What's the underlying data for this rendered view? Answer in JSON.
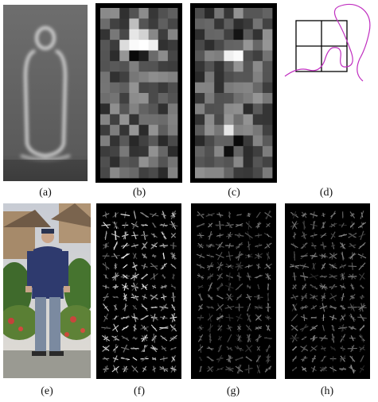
{
  "figure": {
    "captions": {
      "a": "(a)",
      "b": "(b)",
      "c": "(c)",
      "d": "(d)",
      "e": "(e)",
      "f": "(f)",
      "g": "(g)",
      "h": "(h)"
    },
    "accent_colors": {
      "grid_line": "#000000",
      "curve": "#c02fc0",
      "hog_background": "#000000",
      "hog_stroke": "#ffffff"
    },
    "panels": [
      {
        "id": "a",
        "content": "average-gradient-image"
      },
      {
        "id": "b",
        "content": "positive-svm-weight-grid"
      },
      {
        "id": "c",
        "content": "negative-svm-weight-grid"
      },
      {
        "id": "d",
        "content": "block-cell-diagram"
      },
      {
        "id": "e",
        "content": "test-image-person"
      },
      {
        "id": "f",
        "content": "r-hog-descriptor"
      },
      {
        "id": "g",
        "content": "positive-weighted-descriptor"
      },
      {
        "id": "h",
        "content": "negative-weighted-descriptor"
      }
    ]
  }
}
